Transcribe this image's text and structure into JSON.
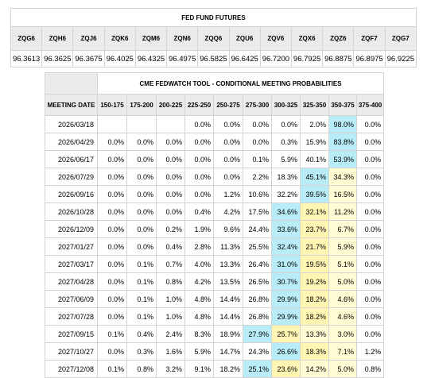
{
  "futures": {
    "title": "FED FUND FUTURES",
    "contracts": [
      "ZQG6",
      "ZQH6",
      "ZQJ6",
      "ZQK6",
      "ZQM6",
      "ZQN6",
      "ZQQ6",
      "ZQU6",
      "ZQV6",
      "ZQX6",
      "ZQZ6",
      "ZQF7",
      "ZQG7"
    ],
    "prices": [
      "96.3613",
      "96.3625",
      "96.3675",
      "96.4025",
      "96.4325",
      "96.4975",
      "96.5825",
      "96.6425",
      "96.7200",
      "96.7925",
      "96.8875",
      "96.8975",
      "96.9225"
    ]
  },
  "fedwatch": {
    "title": "CME FEDWATCH TOOL - CONDITIONAL MEETING PROBABILITIES",
    "date_header": "MEETING DATE",
    "ranges": [
      "150-175",
      "175-200",
      "200-225",
      "225-250",
      "250-275",
      "275-300",
      "300-325",
      "325-350",
      "350-375",
      "375-400"
    ],
    "colors": {
      "highlight_top": "#b8ecf7",
      "highlight_second": "#fff6b4",
      "highlight_third": "#fffbd2"
    },
    "rows": [
      {
        "date": "2026/03/18",
        "values": [
          "",
          "",
          "",
          "0.0%",
          "0.0%",
          "0.0%",
          "0.0%",
          "2.0%",
          "98.0%",
          "0.0%"
        ],
        "hl": [
          0,
          0,
          0,
          0,
          0,
          0,
          0,
          0,
          2,
          0
        ]
      },
      {
        "date": "2026/04/29",
        "values": [
          "0.0%",
          "0.0%",
          "0.0%",
          "0.0%",
          "0.0%",
          "0.0%",
          "0.3%",
          "15.9%",
          "83.8%",
          "0.0%"
        ],
        "hl": [
          0,
          0,
          0,
          0,
          0,
          0,
          0,
          0,
          2,
          0
        ]
      },
      {
        "date": "2026/06/17",
        "values": [
          "0.0%",
          "0.0%",
          "0.0%",
          "0.0%",
          "0.0%",
          "0.1%",
          "5.9%",
          "40.1%",
          "53.9%",
          "0.0%"
        ],
        "hl": [
          0,
          0,
          0,
          0,
          0,
          0,
          0,
          0,
          2,
          0
        ]
      },
      {
        "date": "2026/07/29",
        "values": [
          "0.0%",
          "0.0%",
          "0.0%",
          "0.0%",
          "0.0%",
          "2.2%",
          "18.3%",
          "45.1%",
          "34.3%",
          "0.0%"
        ],
        "hl": [
          0,
          0,
          0,
          0,
          0,
          0,
          0,
          2,
          1,
          0
        ]
      },
      {
        "date": "2026/09/16",
        "values": [
          "0.0%",
          "0.0%",
          "0.0%",
          "0.0%",
          "1.2%",
          "10.6%",
          "32.2%",
          "39.5%",
          "16.5%",
          "0.0%"
        ],
        "hl": [
          0,
          0,
          0,
          0,
          0,
          0,
          0,
          2,
          1,
          0
        ]
      },
      {
        "date": "2026/10/28",
        "values": [
          "0.0%",
          "0.0%",
          "0.0%",
          "0.4%",
          "4.2%",
          "17.5%",
          "34.6%",
          "32.1%",
          "11.2%",
          "0.0%"
        ],
        "hl": [
          0,
          0,
          0,
          0,
          0,
          0,
          2,
          3,
          1,
          0
        ]
      },
      {
        "date": "2026/12/09",
        "values": [
          "0.0%",
          "0.0%",
          "0.2%",
          "1.9%",
          "9.6%",
          "24.4%",
          "33.6%",
          "23.7%",
          "6.7%",
          "0.0%"
        ],
        "hl": [
          0,
          0,
          0,
          0,
          0,
          0,
          2,
          3,
          1,
          0
        ]
      },
      {
        "date": "2027/01/27",
        "values": [
          "0.0%",
          "0.0%",
          "0.4%",
          "2.8%",
          "11.3%",
          "25.5%",
          "32.4%",
          "21.7%",
          "5.9%",
          "0.0%"
        ],
        "hl": [
          0,
          0,
          0,
          0,
          0,
          0,
          2,
          3,
          1,
          0
        ]
      },
      {
        "date": "2027/03/17",
        "values": [
          "0.0%",
          "0.1%",
          "0.7%",
          "4.0%",
          "13.3%",
          "26.4%",
          "31.0%",
          "19.5%",
          "5.1%",
          "0.0%"
        ],
        "hl": [
          0,
          0,
          0,
          0,
          0,
          0,
          2,
          3,
          1,
          0
        ]
      },
      {
        "date": "2027/04/28",
        "values": [
          "0.0%",
          "0.1%",
          "0.8%",
          "4.2%",
          "13.5%",
          "26.5%",
          "30.7%",
          "19.2%",
          "5.0%",
          "0.0%"
        ],
        "hl": [
          0,
          0,
          0,
          0,
          0,
          0,
          2,
          3,
          1,
          0
        ]
      },
      {
        "date": "2027/06/09",
        "values": [
          "0.0%",
          "0.1%",
          "1.0%",
          "4.8%",
          "14.4%",
          "26.8%",
          "29.9%",
          "18.2%",
          "4.6%",
          "0.0%"
        ],
        "hl": [
          0,
          0,
          0,
          0,
          0,
          0,
          2,
          3,
          1,
          0
        ]
      },
      {
        "date": "2027/07/28",
        "values": [
          "0.0%",
          "0.1%",
          "1.0%",
          "4.8%",
          "14.4%",
          "26.8%",
          "29.9%",
          "18.2%",
          "4.6%",
          "0.0%"
        ],
        "hl": [
          0,
          0,
          0,
          0,
          0,
          0,
          2,
          3,
          1,
          0
        ]
      },
      {
        "date": "2027/09/15",
        "values": [
          "0.1%",
          "0.4%",
          "2.4%",
          "8.3%",
          "18.9%",
          "27.9%",
          "25.7%",
          "13.3%",
          "3.0%",
          "0.0%"
        ],
        "hl": [
          0,
          0,
          0,
          0,
          0,
          2,
          3,
          1,
          1,
          0
        ]
      },
      {
        "date": "2027/10/27",
        "values": [
          "0.0%",
          "0.3%",
          "1.6%",
          "5.9%",
          "14.7%",
          "24.3%",
          "26.6%",
          "18.3%",
          "7.1%",
          "1.2%"
        ],
        "hl": [
          0,
          0,
          0,
          0,
          0,
          0,
          2,
          3,
          1,
          0
        ]
      },
      {
        "date": "2027/12/08",
        "values": [
          "0.1%",
          "0.8%",
          "3.2%",
          "9.1%",
          "18.2%",
          "25.1%",
          "23.6%",
          "14.2%",
          "5.0%",
          "0.8%"
        ],
        "hl": [
          0,
          0,
          0,
          0,
          0,
          2,
          3,
          1,
          1,
          0
        ]
      }
    ]
  }
}
